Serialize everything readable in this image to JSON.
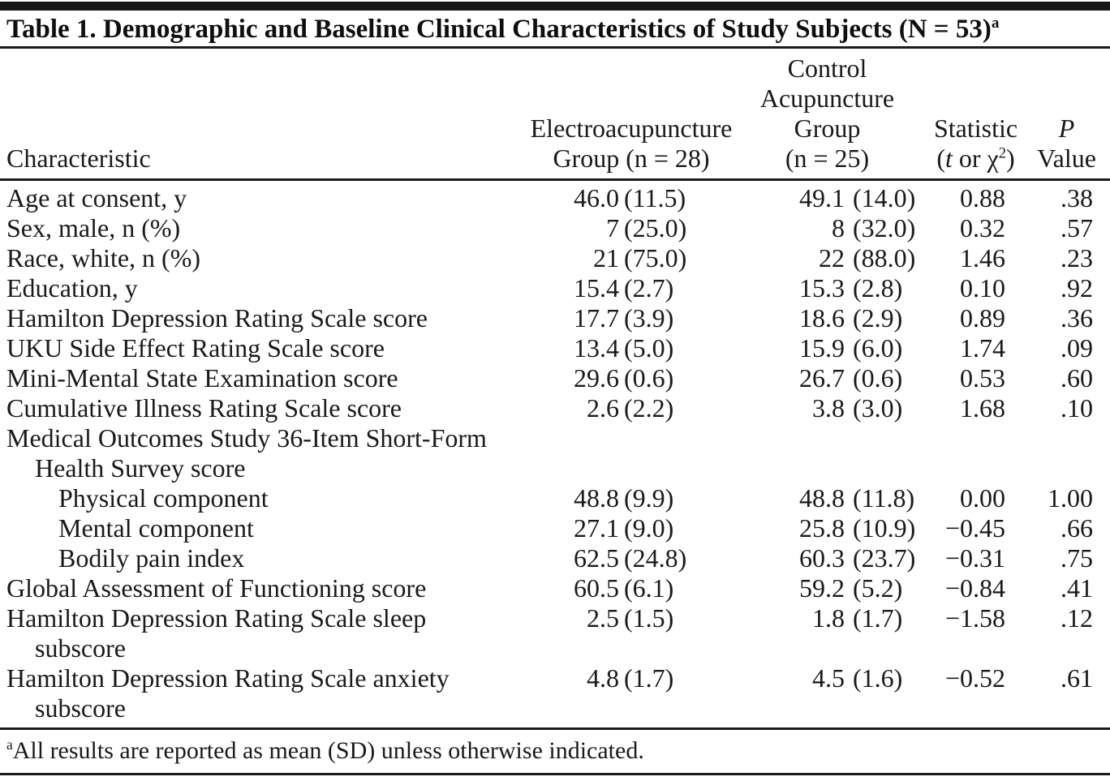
{
  "page": {
    "background": "#ffffff",
    "text_color": "#1a1a1a",
    "rule_color": "#1b1b1b"
  },
  "title": {
    "text": "Table 1. Demographic and Baseline Clinical Characteristics of Study Subjects (N = 53)",
    "footnote_marker": "a"
  },
  "header": {
    "characteristic": "Characteristic",
    "ea_line1": "Electroacupuncture",
    "ea_line2": "Group (n = 28)",
    "ctrl_line1": "Control",
    "ctrl_line2": "Acupuncture",
    "ctrl_line3": "Group",
    "ctrl_line4": "(n = 25)",
    "stat_line1": "Statistic",
    "stat_open": "(",
    "stat_t": "t",
    "stat_mid": " or χ",
    "stat_sup": "2",
    "stat_close": ")",
    "p_line1": "P",
    "p_line2": "Value"
  },
  "table": {
    "rows": [
      {
        "label": "Age at consent, y",
        "label2": "",
        "level": 0,
        "ea_mean": "46.0",
        "ea_sd": "(11.5)",
        "ctrl_mean": "49.1",
        "ctrl_sd": "(14.0)",
        "stat": "0.88",
        "p": ".38"
      },
      {
        "label": "Sex, male, n (%)",
        "label2": "",
        "level": 0,
        "ea_mean": "7",
        "ea_sd": "(25.0)",
        "ctrl_mean": "8",
        "ctrl_sd": "(32.0)",
        "stat": "0.32",
        "p": ".57"
      },
      {
        "label": "Race, white, n (%)",
        "label2": "",
        "level": 0,
        "ea_mean": "21",
        "ea_sd": "(75.0)",
        "ctrl_mean": "22",
        "ctrl_sd": "(88.0)",
        "stat": "1.46",
        "p": ".23"
      },
      {
        "label": "Education, y",
        "label2": "",
        "level": 0,
        "ea_mean": "15.4",
        "ea_sd": "(2.7)",
        "ctrl_mean": "15.3",
        "ctrl_sd": "(2.8)",
        "stat": "0.10",
        "p": ".92"
      },
      {
        "label": "Hamilton Depression Rating Scale score",
        "label2": "",
        "level": 0,
        "ea_mean": "17.7",
        "ea_sd": "(3.9)",
        "ctrl_mean": "18.6",
        "ctrl_sd": "(2.9)",
        "stat": "0.89",
        "p": ".36"
      },
      {
        "label": "UKU Side Effect Rating Scale score",
        "label2": "",
        "level": 0,
        "ea_mean": "13.4",
        "ea_sd": "(5.0)",
        "ctrl_mean": "15.9",
        "ctrl_sd": "(6.0)",
        "stat": "1.74",
        "p": ".09"
      },
      {
        "label": "Mini-Mental State Examination score",
        "label2": "",
        "level": 0,
        "ea_mean": "29.6",
        "ea_sd": "(0.6)",
        "ctrl_mean": "26.7",
        "ctrl_sd": "(0.6)",
        "stat": "0.53",
        "p": ".60"
      },
      {
        "label": "Cumulative Illness Rating Scale score",
        "label2": "",
        "level": 0,
        "ea_mean": "2.6",
        "ea_sd": "(2.2)",
        "ctrl_mean": "3.8",
        "ctrl_sd": "(3.0)",
        "stat": "1.68",
        "p": ".10"
      },
      {
        "label": "Medical Outcomes Study 36-Item Short-Form",
        "label2": "Health Survey score",
        "level": 0,
        "ea_mean": "",
        "ea_sd": "",
        "ctrl_mean": "",
        "ctrl_sd": "",
        "stat": "",
        "p": ""
      },
      {
        "label": "Physical component",
        "label2": "",
        "level": 1,
        "ea_mean": "48.8",
        "ea_sd": "(9.9)",
        "ctrl_mean": "48.8",
        "ctrl_sd": "(11.8)",
        "stat": "0.00",
        "p": "1.00"
      },
      {
        "label": "Mental component",
        "label2": "",
        "level": 1,
        "ea_mean": "27.1",
        "ea_sd": "(9.0)",
        "ctrl_mean": "25.8",
        "ctrl_sd": "(10.9)",
        "stat": "−0.45",
        "p": ".66"
      },
      {
        "label": "Bodily pain index",
        "label2": "",
        "level": 1,
        "ea_mean": "62.5",
        "ea_sd": "(24.8)",
        "ctrl_mean": "60.3",
        "ctrl_sd": "(23.7)",
        "stat": "−0.31",
        "p": ".75"
      },
      {
        "label": "Global Assessment of Functioning score",
        "label2": "",
        "level": 0,
        "ea_mean": "60.5",
        "ea_sd": "(6.1)",
        "ctrl_mean": "59.2",
        "ctrl_sd": "(5.2)",
        "stat": "−0.84",
        "p": ".41"
      },
      {
        "label": "Hamilton Depression Rating Scale sleep",
        "label2": "subscore",
        "level": 0,
        "ea_mean": "2.5",
        "ea_sd": "(1.5)",
        "ctrl_mean": "1.8",
        "ctrl_sd": "(1.7)",
        "stat": "−1.58",
        "p": ".12"
      },
      {
        "label": "Hamilton Depression Rating Scale anxiety",
        "label2": "subscore",
        "level": 0,
        "ea_mean": "4.8",
        "ea_sd": "(1.7)",
        "ctrl_mean": "4.5",
        "ctrl_sd": "(1.6)",
        "stat": "−0.52",
        "p": ".61"
      }
    ]
  },
  "footnote": {
    "marker": "a",
    "text": "All results are reported as mean (SD) unless otherwise indicated."
  }
}
